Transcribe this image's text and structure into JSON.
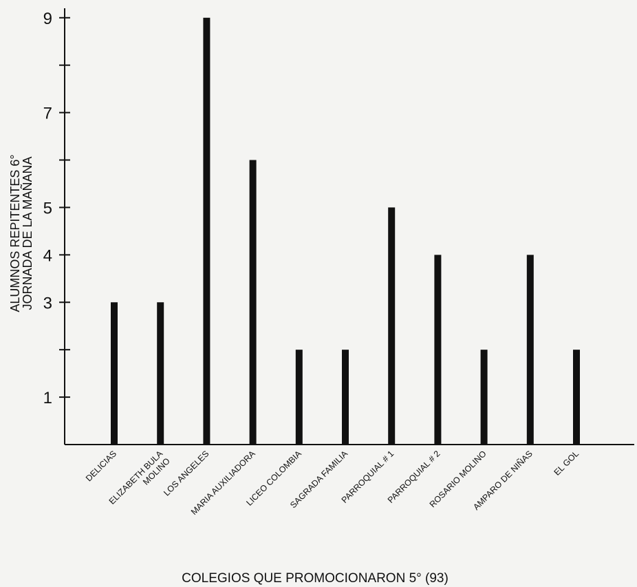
{
  "chart_data": {
    "type": "bar",
    "categories": [
      [
        "DELICIAS"
      ],
      [
        "ELIZABETH BULA",
        "MOLINO"
      ],
      [
        "LOS  ANGELES"
      ],
      [
        "MARIA  AUXILIADORA"
      ],
      [
        "LICEO  COLOMBIA"
      ],
      [
        "SAGRADA  FAMILIA"
      ],
      [
        "PARROQUIAL  # 1"
      ],
      [
        "PARROQUIAL  # 2"
      ],
      [
        "ROSARIO  MOLINO"
      ],
      [
        "AMPARO  DE  NIÑAS"
      ],
      [
        "EL GOL"
      ]
    ],
    "values": [
      3,
      3,
      9,
      6,
      2,
      2,
      5,
      4,
      2,
      4,
      2
    ],
    "ylim": [
      0,
      9.2
    ],
    "yticks": [
      1,
      2,
      3,
      4,
      5,
      6,
      7,
      8,
      9
    ],
    "ytick_labels": [
      "1",
      "",
      "3",
      "4",
      "5",
      "",
      "7",
      "",
      "9"
    ],
    "ylabel_lines": [
      "ALUMNOS REPITENTES 6°",
      "JORNADA DE LA MAÑANA"
    ],
    "xlabel": "COLEGIOS QUE PROMOCIONARON 5° (93)"
  }
}
